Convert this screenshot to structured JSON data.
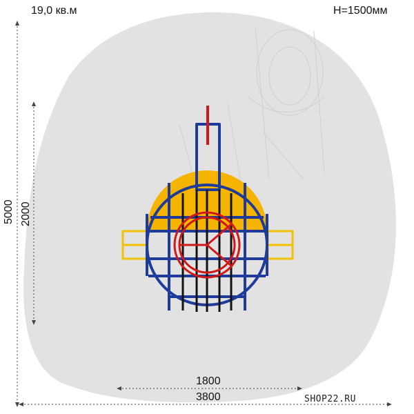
{
  "header": {
    "area": "19,0 кв.м",
    "height": "H=1500мм"
  },
  "dimensions": {
    "total_length": "5000",
    "inner_length": "2000",
    "inner_width": "1800",
    "total_width": "3800"
  },
  "watermark": "SHOP22.RU",
  "colors": {
    "zone": "#e2e2e2",
    "frame": "#1f3b9a",
    "platform": "#f5b400",
    "bars": "#f2c200",
    "accent": "#d01818",
    "dim_line": "#444444"
  }
}
